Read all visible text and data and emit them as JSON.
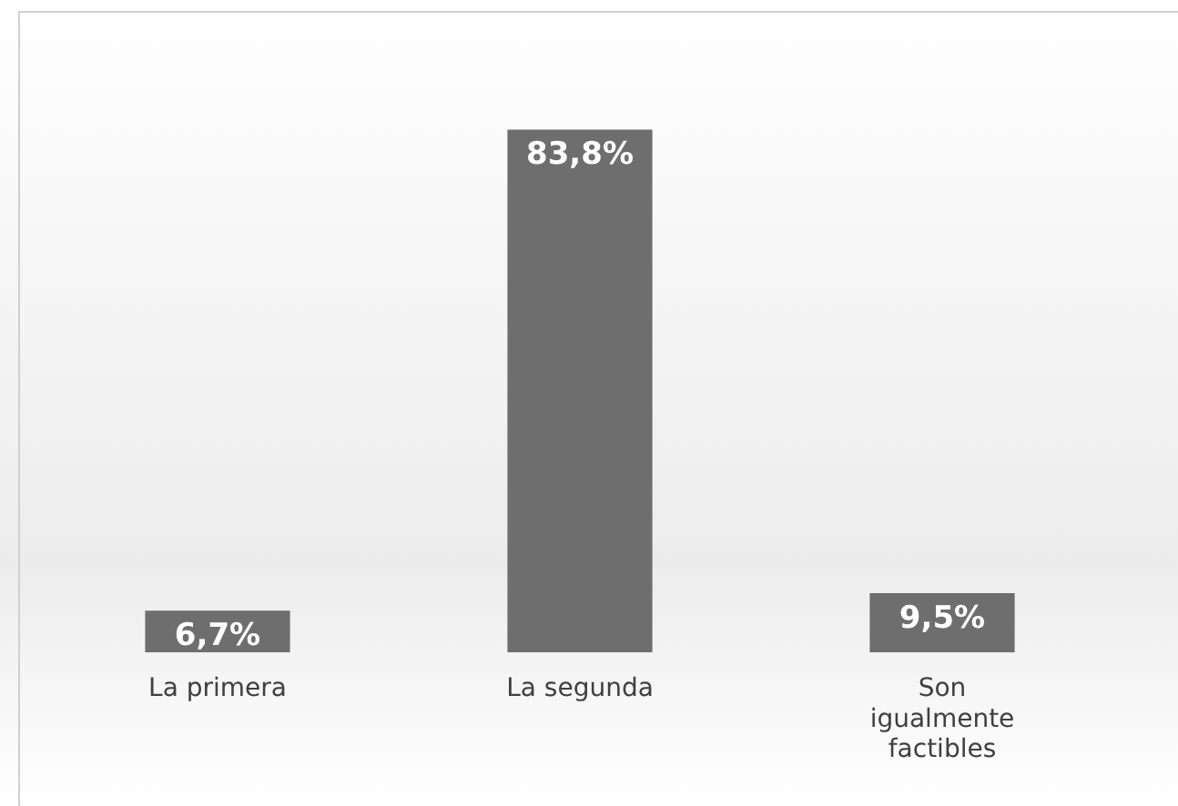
{
  "chart_data": {
    "type": "bar",
    "categories": [
      "La primera",
      "La segunda",
      "Son igualmente factibles"
    ],
    "values": [
      6.7,
      83.8,
      9.5
    ],
    "color": "#6e6e6e",
    "value_labels": [
      "6,7%",
      "83,8%",
      "9,5%"
    ],
    "grid": false,
    "legend": false
  }
}
